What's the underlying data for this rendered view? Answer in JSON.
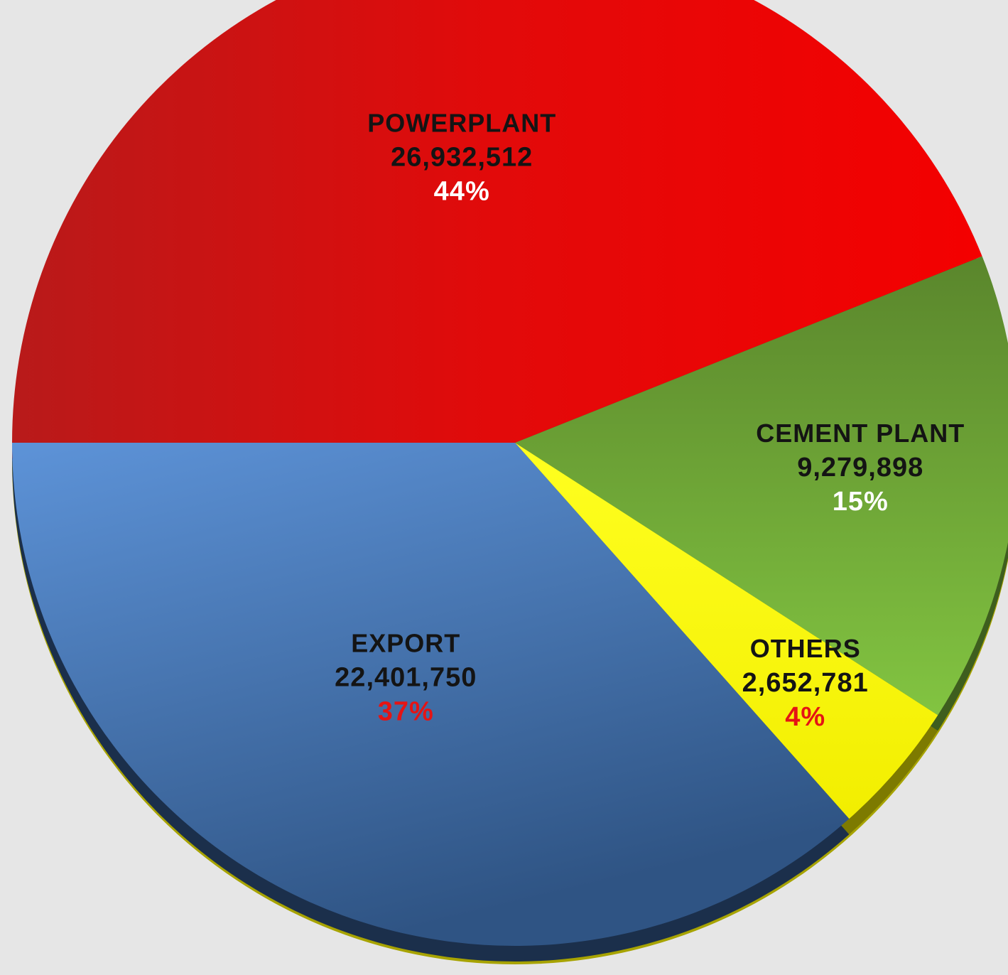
{
  "chart_data": {
    "type": "pie",
    "title": "",
    "slices": [
      {
        "label": "Powerplant",
        "value": 26932512,
        "value_text": "26,932,512",
        "percent_text": "44%",
        "color": "#e10a0a",
        "percent_color": "#ffffff"
      },
      {
        "label": "Cement plant",
        "value": 9279898,
        "value_text": "9,279,898",
        "percent_text": "15%",
        "color": "#6fa83a",
        "percent_color": "#ffffff"
      },
      {
        "label": "Others",
        "value": 2652781,
        "value_text": "2,652,781",
        "percent_text": "4%",
        "color": "#f7f20f",
        "percent_color": "#e51414"
      },
      {
        "label": "Export",
        "value": 22401750,
        "value_text": "22,401,750",
        "percent_text": "37%",
        "color": "#4a7bb8",
        "percent_color": "#e51414"
      }
    ],
    "label_color": "#141414",
    "background": "#e6e6e6",
    "grid": false,
    "legend": "none"
  }
}
